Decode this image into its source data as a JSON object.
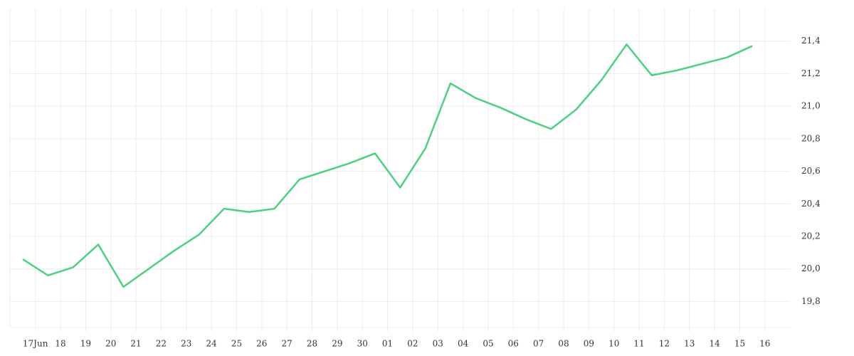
{
  "chart_data": {
    "type": "line",
    "categories": [
      "17Jun",
      "18",
      "19",
      "20",
      "21",
      "22",
      "23",
      "24",
      "25",
      "26",
      "27",
      "28",
      "29",
      "30",
      "01",
      "02",
      "03",
      "04",
      "05",
      "06",
      "07",
      "08",
      "09",
      "10",
      "11",
      "12",
      "13",
      "14",
      "15",
      "16"
    ],
    "series": [
      {
        "color": "#4cd27f",
        "values": [
          20.06,
          19.96,
          20.01,
          20.15,
          19.89,
          20.0,
          20.11,
          20.21,
          20.37,
          20.35,
          20.37,
          20.55,
          20.6,
          20.65,
          20.71,
          20.5,
          20.74,
          21.14,
          21.05,
          20.99,
          20.92,
          20.86,
          20.98,
          21.16,
          21.38,
          21.19,
          21.22,
          21.26,
          21.3,
          21.37
        ]
      }
    ],
    "ylim": [
      19.64,
      21.6
    ],
    "yticks": [
      {
        "value": 19.8,
        "label": "19,8"
      },
      {
        "value": 20.0,
        "label": "20,0"
      },
      {
        "value": 20.2,
        "label": "20,2"
      },
      {
        "value": 20.4,
        "label": "20,4"
      },
      {
        "value": 20.6,
        "label": "20,6"
      },
      {
        "value": 20.8,
        "label": "20,8"
      },
      {
        "value": 21.0,
        "label": "21,0"
      },
      {
        "value": 21.2,
        "label": "21,2"
      },
      {
        "value": 21.4,
        "label": "21,4"
      }
    ],
    "grid": true
  }
}
